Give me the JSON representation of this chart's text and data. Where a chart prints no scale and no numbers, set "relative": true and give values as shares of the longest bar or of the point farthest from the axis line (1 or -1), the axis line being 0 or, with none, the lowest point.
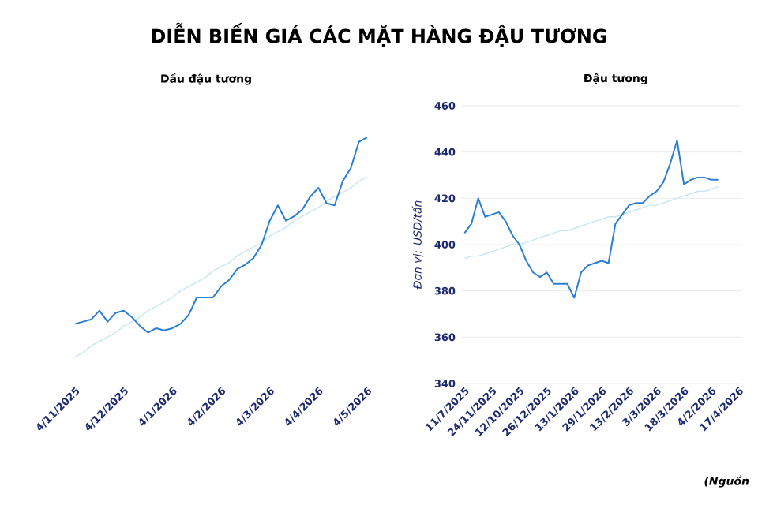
{
  "chart_data": [
    {
      "type": "line",
      "title": "DIỄN BIẾN GIÁ CÁC MẶT HÀNG ĐẬU TƯƠNG",
      "subtitle": "Dầu đậu tương",
      "relative": true,
      "categories": [
        "4/11/2025",
        null,
        null,
        null,
        null,
        null,
        "4/12/2025",
        null,
        null,
        null,
        null,
        null,
        "4/1/2026",
        null,
        null,
        null,
        null,
        null,
        "4/2/2026",
        null,
        null,
        null,
        null,
        null,
        "4/3/2026",
        null,
        null,
        null,
        null,
        null,
        "4/4/2026",
        null,
        null,
        null,
        null,
        null,
        "4/5/2026"
      ],
      "series": [
        {
          "color": "#2a7fd4",
          "values": [
            0.15,
            0.16,
            0.17,
            0.21,
            0.16,
            0.2,
            0.21,
            0.18,
            0.14,
            0.11,
            0.13,
            0.12,
            0.13,
            0.15,
            0.19,
            0.27,
            0.27,
            0.27,
            0.32,
            0.35,
            0.4,
            0.42,
            0.45,
            0.51,
            0.62,
            0.69,
            0.62,
            0.64,
            0.67,
            0.73,
            0.77,
            0.7,
            0.69,
            0.8,
            0.86,
            0.98,
            1
          ]
        },
        {
          "color": "#c4e6f6",
          "values": [
            0,
            0.02,
            0.05,
            0.07,
            0.09,
            0.11,
            0.14,
            0.16,
            0.18,
            0.21,
            0.23,
            0.25,
            0.27,
            0.3,
            0.32,
            0.34,
            0.36,
            0.39,
            0.41,
            0.43,
            0.46,
            0.48,
            0.5,
            0.52,
            0.55,
            0.57,
            0.59,
            0.62,
            0.64,
            0.66,
            0.68,
            0.71,
            0.73,
            0.75,
            0.77,
            0.8,
            0.82
          ]
        }
      ]
    },
    {
      "type": "line",
      "title": "Đậu tương",
      "ylabel": "Đơn vị: USD/tấn",
      "ylim": [
        340,
        460
      ],
      "yticks": [
        340,
        360,
        380,
        400,
        420,
        440,
        460
      ],
      "grid": "y",
      "annotations": [
        "(Nguồn"
      ],
      "categories": [
        "11/7/2025",
        null,
        null,
        null,
        "24/11/2025",
        null,
        null,
        null,
        "12/10/2025",
        null,
        null,
        null,
        "26/12/2025",
        null,
        null,
        null,
        "13/1/2026",
        null,
        null,
        null,
        "29/1/2026",
        null,
        null,
        null,
        "13/2/2026",
        null,
        null,
        null,
        "3/3/2026",
        null,
        null,
        null,
        "18/3/2026",
        null,
        null,
        null,
        "4/2/2026",
        null,
        null,
        null,
        "17/4/2026"
      ],
      "series": [
        {
          "color": "#2a7fd4",
          "values": [
            405,
            409,
            420,
            412,
            413,
            414,
            410,
            404,
            400,
            393,
            388,
            386,
            388,
            383,
            383,
            383,
            377,
            388,
            391,
            392,
            393,
            392,
            409,
            413,
            417,
            418,
            418,
            421,
            423,
            427,
            435,
            445,
            426,
            428,
            429,
            429,
            428,
            428,
            null,
            null,
            null
          ]
        },
        {
          "color": "#c4e6f6",
          "values": [
            394,
            395,
            395,
            396,
            397,
            398,
            399,
            400,
            400,
            401,
            402,
            403,
            404,
            405,
            406,
            406,
            407,
            408,
            409,
            410,
            411,
            412,
            412,
            413,
            414,
            415,
            416,
            417,
            417,
            418,
            419,
            420,
            421,
            422,
            423,
            423,
            424,
            425,
            null,
            null,
            null
          ]
        }
      ]
    }
  ]
}
